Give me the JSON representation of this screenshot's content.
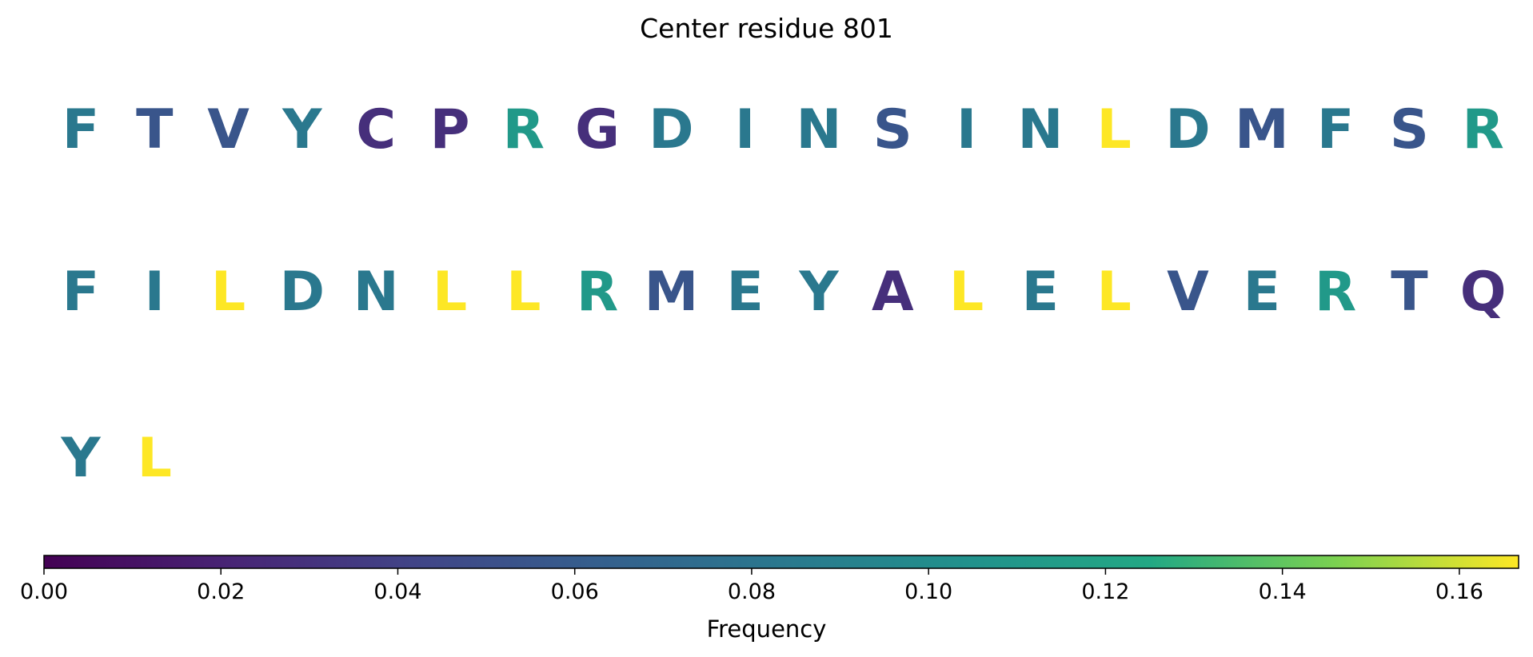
{
  "chart_data": {
    "type": "sequence-logo-colormap",
    "title": "Center residue 801",
    "colormap": "viridis",
    "colorbar": {
      "label": "Frequency",
      "range": [
        0.0,
        0.1667
      ],
      "ticks": [
        "0.00",
        "0.02",
        "0.04",
        "0.06",
        "0.08",
        "0.10",
        "0.12",
        "0.14",
        "0.16"
      ],
      "tick_values": [
        0.0,
        0.02,
        0.04,
        0.06,
        0.08,
        0.1,
        0.12,
        0.14,
        0.16
      ]
    },
    "rows": [
      [
        {
          "letter": "F",
          "frequency": 0.083
        },
        {
          "letter": "T",
          "frequency": 0.055
        },
        {
          "letter": "V",
          "frequency": 0.055
        },
        {
          "letter": "Y",
          "frequency": 0.083
        },
        {
          "letter": "C",
          "frequency": 0.028
        },
        {
          "letter": "P",
          "frequency": 0.028
        },
        {
          "letter": "R",
          "frequency": 0.111
        },
        {
          "letter": "G",
          "frequency": 0.028
        },
        {
          "letter": "D",
          "frequency": 0.083
        },
        {
          "letter": "I",
          "frequency": 0.083
        },
        {
          "letter": "N",
          "frequency": 0.083
        },
        {
          "letter": "S",
          "frequency": 0.055
        },
        {
          "letter": "I",
          "frequency": 0.083
        },
        {
          "letter": "N",
          "frequency": 0.083
        },
        {
          "letter": "L",
          "frequency": 0.167
        },
        {
          "letter": "D",
          "frequency": 0.083
        },
        {
          "letter": "M",
          "frequency": 0.055
        },
        {
          "letter": "F",
          "frequency": 0.083
        },
        {
          "letter": "S",
          "frequency": 0.055
        },
        {
          "letter": "R",
          "frequency": 0.111
        }
      ],
      [
        {
          "letter": "F",
          "frequency": 0.083
        },
        {
          "letter": "I",
          "frequency": 0.083
        },
        {
          "letter": "L",
          "frequency": 0.167
        },
        {
          "letter": "D",
          "frequency": 0.083
        },
        {
          "letter": "N",
          "frequency": 0.083
        },
        {
          "letter": "L",
          "frequency": 0.167
        },
        {
          "letter": "L",
          "frequency": 0.167
        },
        {
          "letter": "R",
          "frequency": 0.111
        },
        {
          "letter": "M",
          "frequency": 0.055
        },
        {
          "letter": "E",
          "frequency": 0.083
        },
        {
          "letter": "Y",
          "frequency": 0.083
        },
        {
          "letter": "A",
          "frequency": 0.028
        },
        {
          "letter": "L",
          "frequency": 0.167
        },
        {
          "letter": "E",
          "frequency": 0.083
        },
        {
          "letter": "L",
          "frequency": 0.167
        },
        {
          "letter": "V",
          "frequency": 0.055
        },
        {
          "letter": "E",
          "frequency": 0.083
        },
        {
          "letter": "R",
          "frequency": 0.111
        },
        {
          "letter": "T",
          "frequency": 0.055
        },
        {
          "letter": "Q",
          "frequency": 0.028
        }
      ],
      [
        {
          "letter": "Y",
          "frequency": 0.083
        },
        {
          "letter": "L",
          "frequency": 0.167
        }
      ]
    ]
  }
}
